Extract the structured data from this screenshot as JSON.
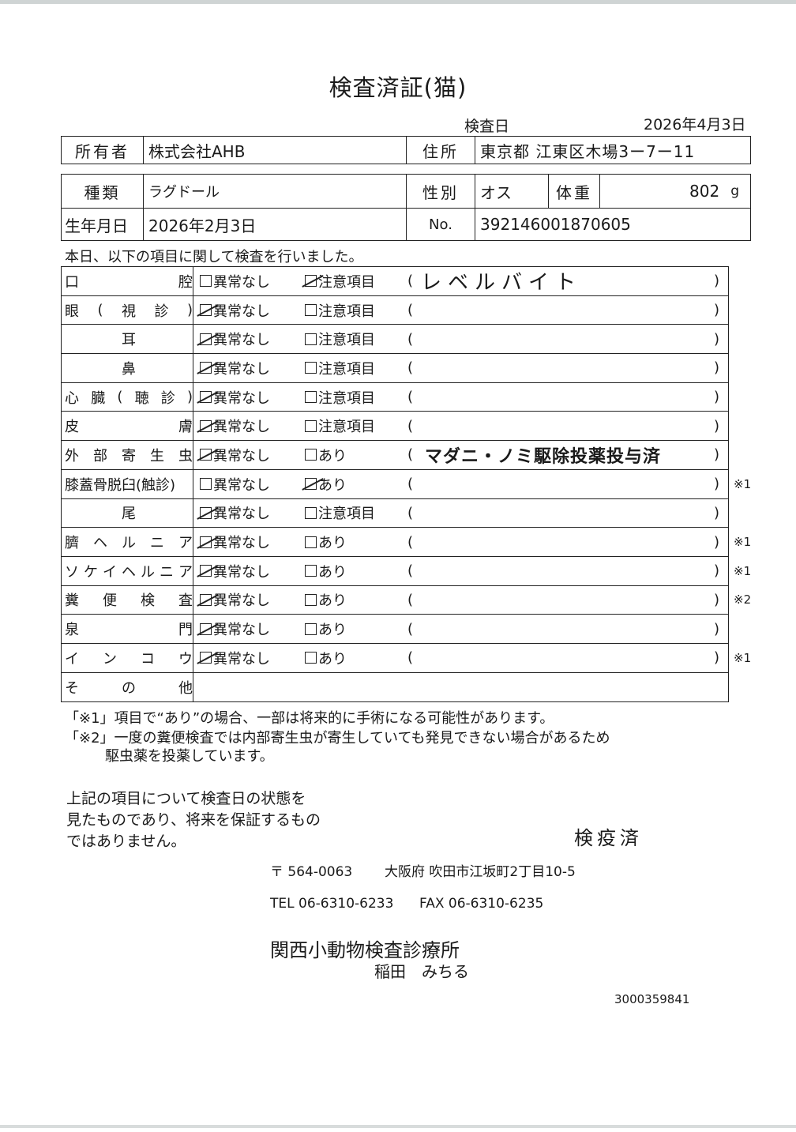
{
  "document": {
    "title": "検査済証(猫)",
    "exam_date_label": "検査日",
    "exam_date": "2026年4月3日",
    "owner_label": "所有者",
    "owner": "株式会社AHB",
    "address_label": "住所",
    "address": "東京都 江東区木場3ー7ー11",
    "breed_label": "種類",
    "breed": "ラグドール",
    "sex_label": "性別",
    "sex": "オス",
    "weight_label": "体重",
    "weight": "802",
    "weight_unit": "g",
    "dob_label": "生年月日",
    "dob": "2026年2月3日",
    "no_label": "No.",
    "no": "392146001870605",
    "intro": "本日、以下の項目に関して検査を行いました。"
  },
  "items": [
    {
      "label": [
        "口",
        "腔"
      ],
      "opt1": "異常なし",
      "opt2": "注意項目",
      "checked": 2,
      "note": "レベルバイト",
      "hand": true,
      "mark": ""
    },
    {
      "label": [
        "眼",
        "(",
        "視",
        "診",
        ")"
      ],
      "opt1": "異常なし",
      "opt2": "注意項目",
      "checked": 1,
      "note": "",
      "mark": ""
    },
    {
      "label": [
        "耳"
      ],
      "opt1": "異常なし",
      "opt2": "注意項目",
      "checked": 1,
      "note": "",
      "mark": ""
    },
    {
      "label": [
        "鼻"
      ],
      "opt1": "異常なし",
      "opt2": "注意項目",
      "checked": 1,
      "note": "",
      "mark": ""
    },
    {
      "label": [
        "心",
        "臓",
        "(",
        "聴",
        "診",
        ")"
      ],
      "opt1": "異常なし",
      "opt2": "注意項目",
      "checked": 1,
      "note": "",
      "mark": ""
    },
    {
      "label": [
        "皮",
        "膚"
      ],
      "opt1": "異常なし",
      "opt2": "注意項目",
      "checked": 1,
      "note": "",
      "mark": ""
    },
    {
      "label": [
        "外",
        "部",
        "寄",
        "生",
        "虫"
      ],
      "opt1": "異常なし",
      "opt2": "あり",
      "checked": 1,
      "note": "マダニ・ノミ駆除投薬投与済",
      "mark": ""
    },
    {
      "label": [
        "膝蓋骨脱臼(触診)"
      ],
      "opt1": "異常なし",
      "opt2": "あり",
      "checked": 2,
      "note": "",
      "mark": "※1"
    },
    {
      "label": [
        "尾"
      ],
      "opt1": "異常なし",
      "opt2": "注意項目",
      "checked": 1,
      "note": "",
      "mark": ""
    },
    {
      "label": [
        "臍",
        "ヘ",
        "ル",
        "ニ",
        "ア"
      ],
      "opt1": "異常なし",
      "opt2": "あり",
      "checked": 1,
      "note": "",
      "mark": "※1"
    },
    {
      "label": [
        "ソ",
        "ケ",
        "イ",
        "ヘ",
        "ル",
        "ニ",
        "ア"
      ],
      "opt1": "異常なし",
      "opt2": "あり",
      "checked": 1,
      "note": "",
      "mark": "※1"
    },
    {
      "label": [
        "糞",
        "便",
        "検",
        "査"
      ],
      "opt1": "異常なし",
      "opt2": "あり",
      "checked": 1,
      "note": "",
      "mark": "※2"
    },
    {
      "label": [
        "泉",
        "門"
      ],
      "opt1": "異常なし",
      "opt2": "あり",
      "checked": 1,
      "note": "",
      "mark": ""
    },
    {
      "label": [
        "イ",
        "ン",
        "コ",
        "ウ"
      ],
      "opt1": "異常なし",
      "opt2": "あり",
      "checked": 1,
      "note": "",
      "mark": "※1"
    }
  ],
  "other_label": [
    "そ",
    "の",
    "他"
  ],
  "paren_open": "(",
  "paren_close": ")",
  "footnotes": {
    "n1": "「※1」項目で“あり”の場合、一部は将来的に手術になる可能性があります。",
    "n2a": "「※2」一度の糞便検査では内部寄生虫が寄生していても発見できない場合があるため",
    "n2b": "駆虫薬を投薬しています。"
  },
  "disclaimer": [
    "上記の項目について検査日の状態を",
    "見たものであり、将来を保証するもの",
    "ではありません。"
  ],
  "stamp": "検疫済",
  "clinic": {
    "postal": "〒 564-0063",
    "address": "大阪府 吹田市江坂町2丁目10-5",
    "tel": "TEL 06-6310-6233",
    "fax": "FAX 06-6310-6235",
    "name": "関西小動物検査診療所",
    "doctor": "稲田　みちる"
  },
  "serial": "3000359841"
}
